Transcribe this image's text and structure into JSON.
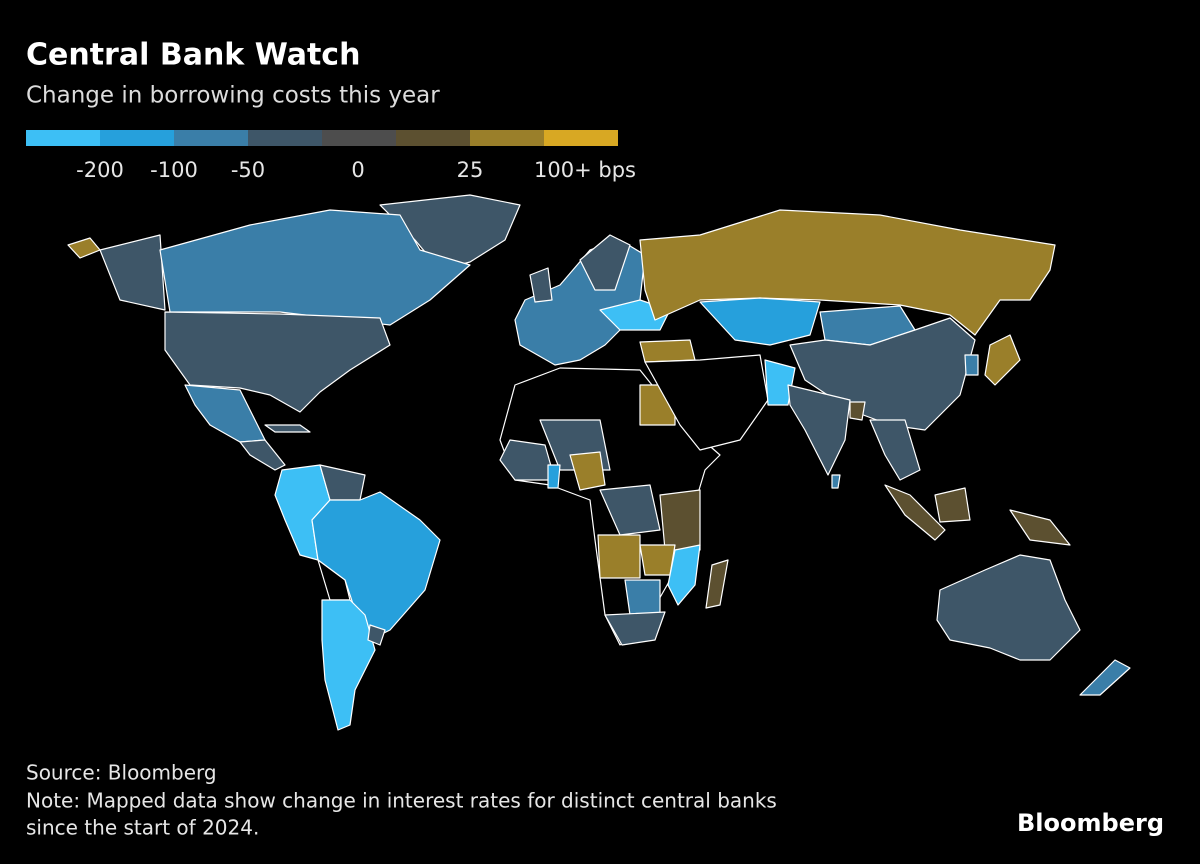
{
  "title": "Central Bank Watch",
  "subtitle": "Change in borrowing costs this year",
  "legend": {
    "colors": [
      "#3dbff5",
      "#26a0dc",
      "#3a7ea8",
      "#3e5668",
      "#4d4d4d",
      "#5c5030",
      "#9a7f2a",
      "#d8a823"
    ],
    "labels": [
      -200,
      -100,
      -50,
      0,
      25,
      {
        "value": 100,
        "label": "100+ bps"
      }
    ]
  },
  "source": "Source: Bloomberg",
  "note": [
    "Note: Mapped data show change in interest rates for distinct central banks",
    "since the start of 2024."
  ],
  "brand": "Bloomberg"
}
